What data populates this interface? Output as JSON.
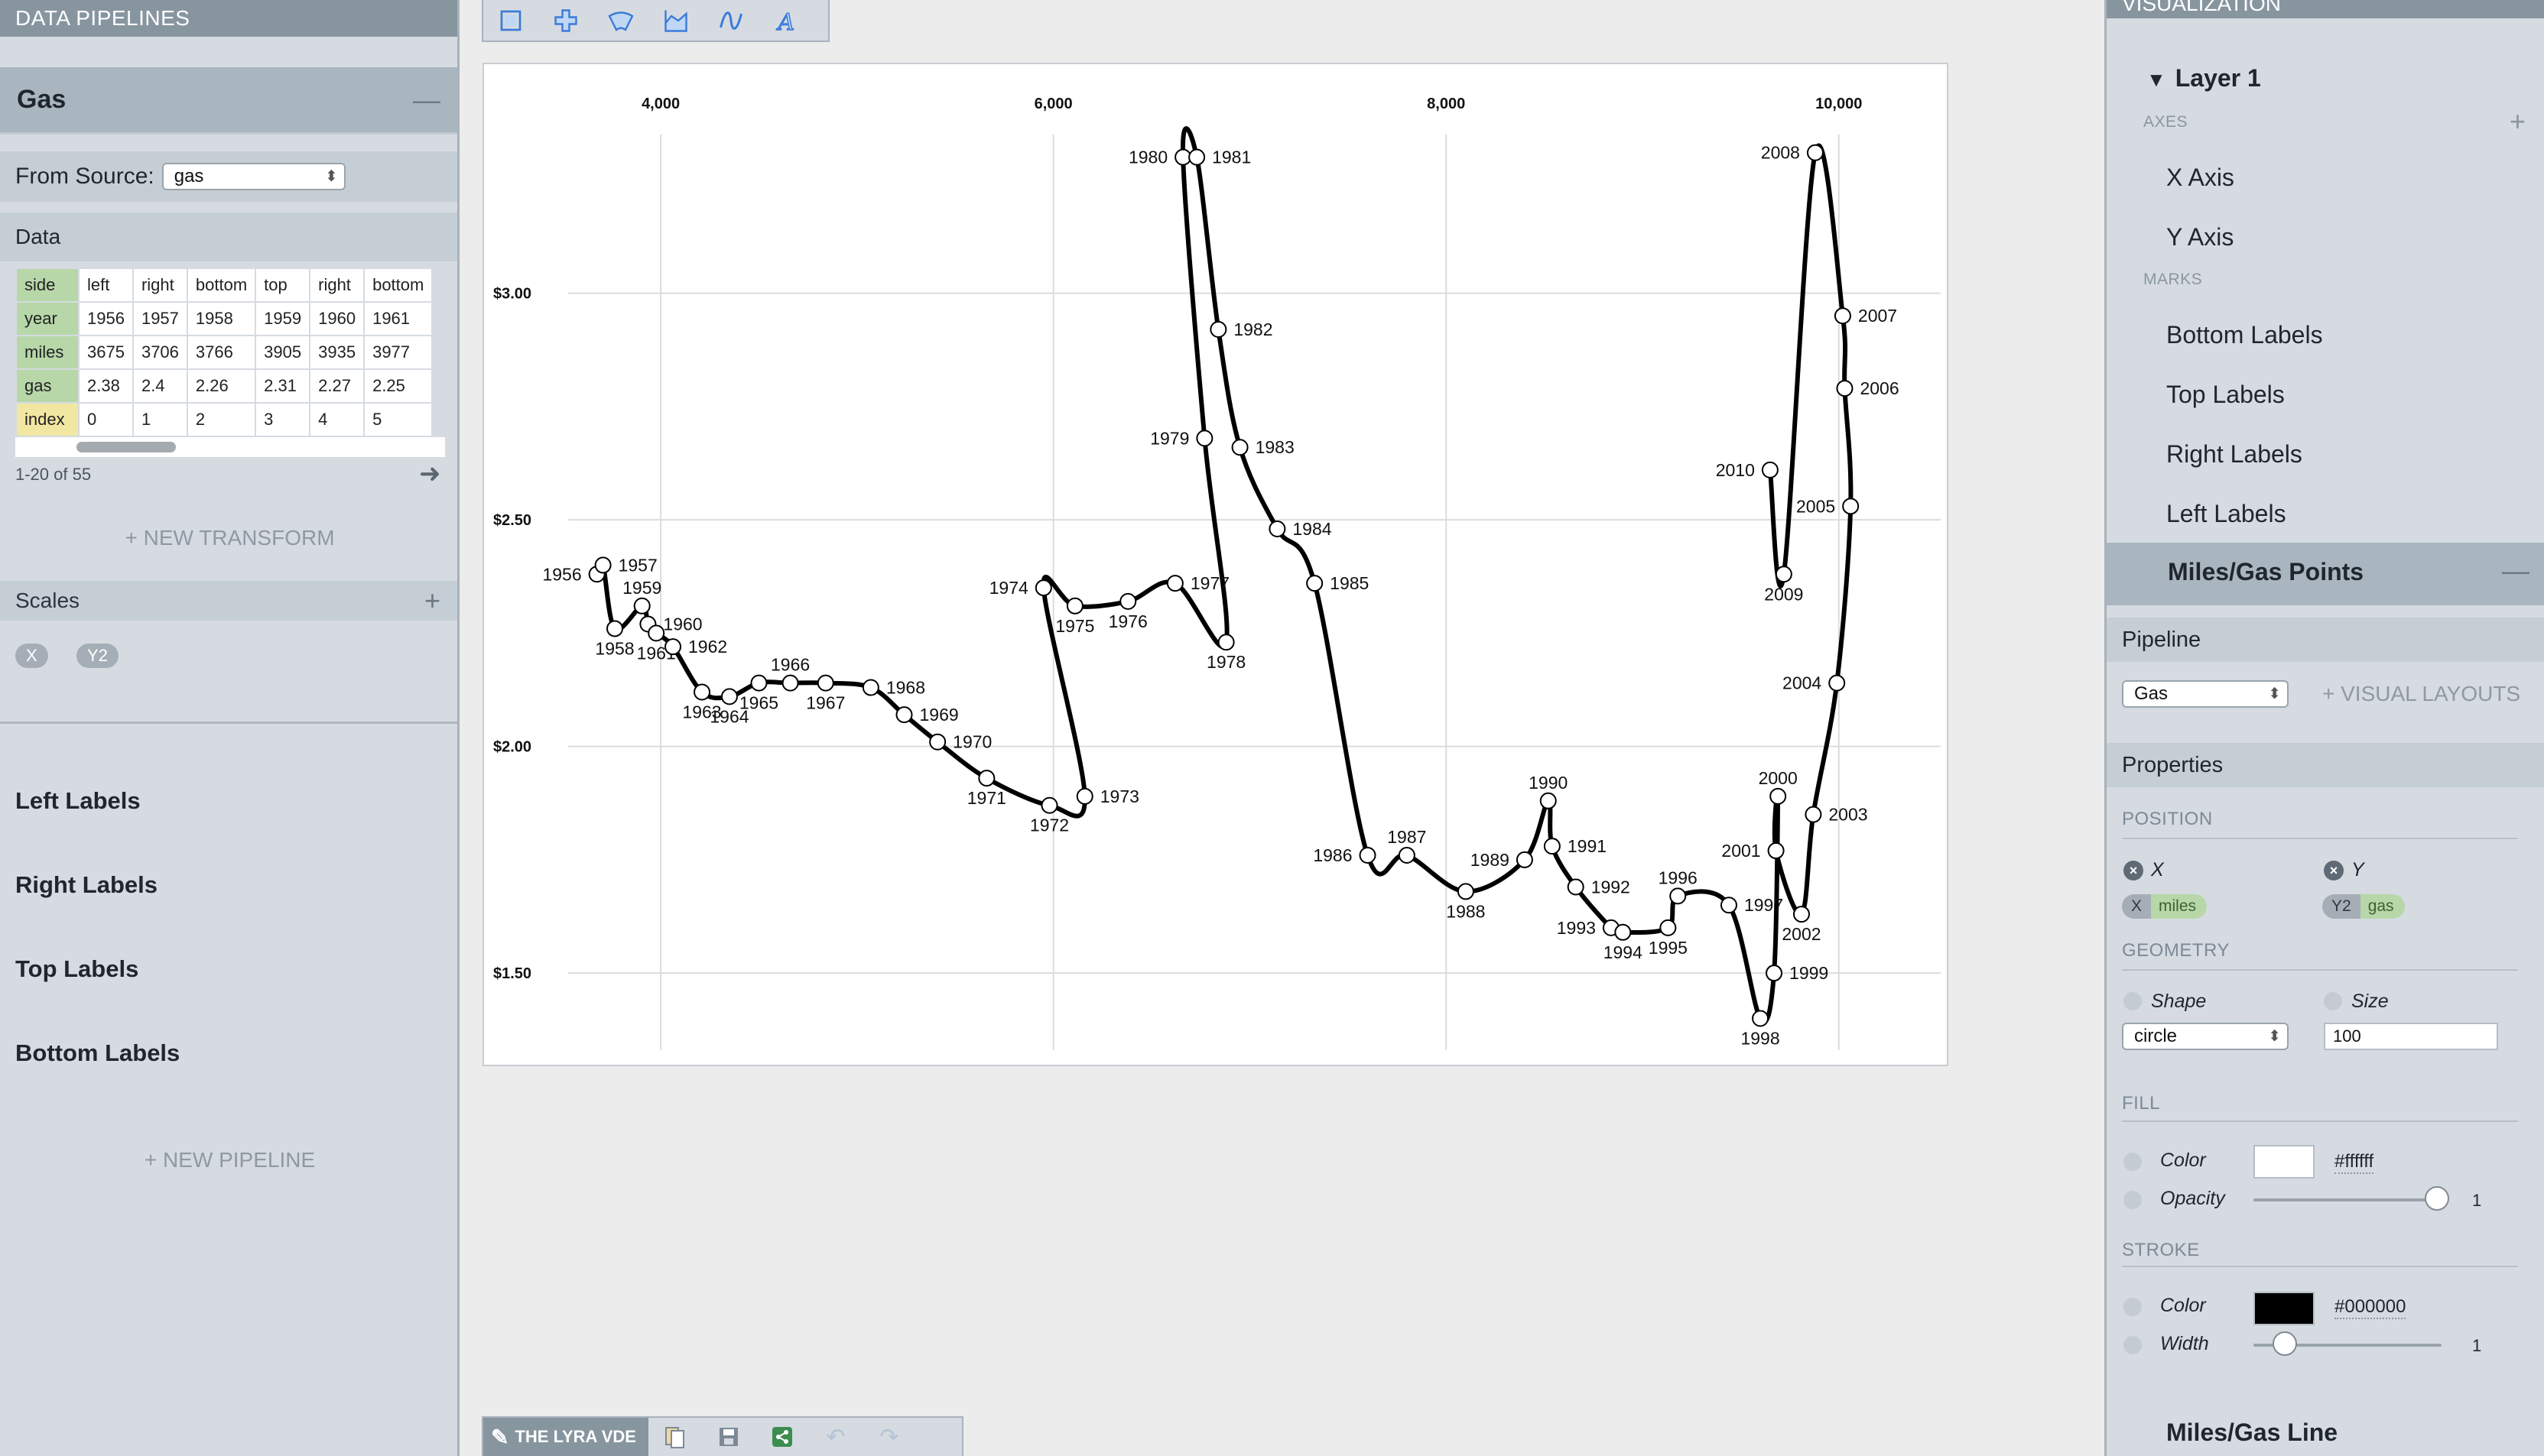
{
  "left_panel": {
    "header": "DATA PIPELINES",
    "pipeline_name": "Gas",
    "source_label": "From Source:",
    "source_value": "gas",
    "data_label": "Data",
    "table": {
      "rows": [
        {
          "field": "side",
          "values": [
            "left",
            "right",
            "bottom",
            "top",
            "right",
            "bottom"
          ]
        },
        {
          "field": "year",
          "values": [
            "1956",
            "1957",
            "1958",
            "1959",
            "1960",
            "1961"
          ]
        },
        {
          "field": "miles",
          "values": [
            "3675",
            "3706",
            "3766",
            "3905",
            "3935",
            "3977"
          ]
        },
        {
          "field": "gas",
          "values": [
            "2.38",
            "2.4",
            "2.26",
            "2.31",
            "2.27",
            "2.25"
          ]
        },
        {
          "field": "index",
          "values": [
            "0",
            "1",
            "2",
            "3",
            "4",
            "5"
          ]
        }
      ]
    },
    "pager_text": "1-20 of 55",
    "new_transform": "+ NEW TRANSFORM",
    "scales_label": "Scales",
    "scales": [
      "X",
      "Y2"
    ],
    "pipeline_marks": [
      "Left Labels",
      "Right Labels",
      "Top Labels",
      "Bottom Labels"
    ],
    "new_pipeline": "+ NEW PIPELINE"
  },
  "toolbar": {
    "tools": [
      "rect-tool-icon",
      "symbol-tool-icon",
      "arc-tool-icon",
      "area-tool-icon",
      "line-tool-icon",
      "text-tool-icon"
    ]
  },
  "bottom_bar": {
    "brand": "THE LYRA VDE",
    "icons": [
      "export-icon",
      "save-icon",
      "share-icon",
      "undo-icon",
      "redo-icon"
    ]
  },
  "right_panel": {
    "header": "VISUALIZATION",
    "layer": "Layer 1",
    "axes_label": "AXES",
    "axes": [
      "X Axis",
      "Y Axis"
    ],
    "marks_label": "MARKS",
    "marks": [
      "Bottom Labels",
      "Top Labels",
      "Right Labels",
      "Left Labels"
    ],
    "active_mark": "Miles/Gas Points",
    "pipeline_section": "Pipeline",
    "pipeline_value": "Gas",
    "visual_layouts": "+ VISUAL LAYOUTS",
    "properties_section": "Properties",
    "position_label": "POSITION",
    "x_label": "X",
    "y_label": "Y",
    "x_scale": "X",
    "x_field": "miles",
    "y_scale": "Y2",
    "y_field": "gas",
    "geometry_label": "GEOMETRY",
    "shape_label": "Shape",
    "shape_value": "circle",
    "size_label": "Size",
    "size_value": "100",
    "fill_label": "FILL",
    "fill_color_label": "Color",
    "fill_color": "#ffffff",
    "fill_opacity_label": "Opacity",
    "fill_opacity": "1",
    "stroke_label": "STROKE",
    "stroke_color_label": "Color",
    "stroke_color": "#000000",
    "stroke_width_label": "Width",
    "stroke_width": "1",
    "next_mark": "Miles/Gas Line"
  },
  "chart_data": {
    "type": "line",
    "xlim": [
      3100,
      10550
    ],
    "ylim": [
      1.33,
      3.35
    ],
    "x_ticks": [
      {
        "v": 4000,
        "label": "4,000"
      },
      {
        "v": 6000,
        "label": "6,000"
      },
      {
        "v": 8000,
        "label": "8,000"
      },
      {
        "v": 10000,
        "label": "10,000"
      }
    ],
    "y_ticks": [
      {
        "v": 1.5,
        "label": "$1.50"
      },
      {
        "v": 2.0,
        "label": "$2.00"
      },
      {
        "v": 2.5,
        "label": "$2.50"
      },
      {
        "v": 3.0,
        "label": "$3.00"
      }
    ],
    "grid": true,
    "points": [
      {
        "year": "1956",
        "miles": 3675,
        "gas": 2.38,
        "side": "left"
      },
      {
        "year": "1957",
        "miles": 3706,
        "gas": 2.4,
        "side": "right"
      },
      {
        "year": "1958",
        "miles": 3766,
        "gas": 2.26,
        "side": "bottom"
      },
      {
        "year": "1959",
        "miles": 3905,
        "gas": 2.31,
        "side": "top"
      },
      {
        "year": "1960",
        "miles": 3935,
        "gas": 2.27,
        "side": "right"
      },
      {
        "year": "1961",
        "miles": 3977,
        "gas": 2.25,
        "side": "bottom"
      },
      {
        "year": "1962",
        "miles": 4062,
        "gas": 2.22,
        "side": "right"
      },
      {
        "year": "1963",
        "miles": 4210,
        "gas": 2.12,
        "side": "bottom"
      },
      {
        "year": "1964",
        "miles": 4350,
        "gas": 2.11,
        "side": "bottom"
      },
      {
        "year": "1965",
        "miles": 4500,
        "gas": 2.14,
        "side": "bottom"
      },
      {
        "year": "1966",
        "miles": 4660,
        "gas": 2.14,
        "side": "top"
      },
      {
        "year": "1967",
        "miles": 4840,
        "gas": 2.14,
        "side": "bottom"
      },
      {
        "year": "1968",
        "miles": 5070,
        "gas": 2.13,
        "side": "right"
      },
      {
        "year": "1969",
        "miles": 5240,
        "gas": 2.07,
        "side": "right"
      },
      {
        "year": "1970",
        "miles": 5410,
        "gas": 2.01,
        "side": "right"
      },
      {
        "year": "1971",
        "miles": 5660,
        "gas": 1.93,
        "side": "bottom"
      },
      {
        "year": "1972",
        "miles": 5980,
        "gas": 1.87,
        "side": "bottom"
      },
      {
        "year": "1973",
        "miles": 6160,
        "gas": 1.89,
        "side": "right"
      },
      {
        "year": "1974",
        "miles": 5950,
        "gas": 2.35,
        "side": "left"
      },
      {
        "year": "1975",
        "miles": 6110,
        "gas": 2.31,
        "side": "bottom"
      },
      {
        "year": "1976",
        "miles": 6380,
        "gas": 2.32,
        "side": "bottom"
      },
      {
        "year": "1977",
        "miles": 6620,
        "gas": 2.36,
        "side": "right"
      },
      {
        "year": "1978",
        "miles": 6880,
        "gas": 2.23,
        "side": "bottom"
      },
      {
        "year": "1979",
        "miles": 6770,
        "gas": 2.68,
        "side": "left"
      },
      {
        "year": "1980",
        "miles": 6660,
        "gas": 3.3,
        "side": "left"
      },
      {
        "year": "1981",
        "miles": 6730,
        "gas": 3.3,
        "side": "right"
      },
      {
        "year": "1982",
        "miles": 6840,
        "gas": 2.92,
        "side": "right"
      },
      {
        "year": "1983",
        "miles": 6950,
        "gas": 2.66,
        "side": "right"
      },
      {
        "year": "1984",
        "miles": 7140,
        "gas": 2.48,
        "side": "right"
      },
      {
        "year": "1985",
        "miles": 7330,
        "gas": 2.36,
        "side": "right"
      },
      {
        "year": "1986",
        "miles": 7600,
        "gas": 1.76,
        "side": "left"
      },
      {
        "year": "1987",
        "miles": 7800,
        "gas": 1.76,
        "side": "top"
      },
      {
        "year": "1988",
        "miles": 8100,
        "gas": 1.68,
        "side": "bottom"
      },
      {
        "year": "1989",
        "miles": 8400,
        "gas": 1.75,
        "side": "left"
      },
      {
        "year": "1990",
        "miles": 8520,
        "gas": 1.88,
        "side": "top"
      },
      {
        "year": "1991",
        "miles": 8540,
        "gas": 1.78,
        "side": "right"
      },
      {
        "year": "1992",
        "miles": 8660,
        "gas": 1.69,
        "side": "right"
      },
      {
        "year": "1993",
        "miles": 8840,
        "gas": 1.6,
        "side": "left"
      },
      {
        "year": "1994",
        "miles": 8900,
        "gas": 1.59,
        "side": "bottom"
      },
      {
        "year": "1995",
        "miles": 9130,
        "gas": 1.6,
        "side": "bottom"
      },
      {
        "year": "1996",
        "miles": 9180,
        "gas": 1.67,
        "side": "top"
      },
      {
        "year": "1997",
        "miles": 9440,
        "gas": 1.65,
        "side": "right"
      },
      {
        "year": "1998",
        "miles": 9600,
        "gas": 1.4,
        "side": "bottom"
      },
      {
        "year": "1999",
        "miles": 9670,
        "gas": 1.5,
        "side": "right"
      },
      {
        "year": "2000",
        "miles": 9690,
        "gas": 1.89,
        "side": "top"
      },
      {
        "year": "2001",
        "miles": 9680,
        "gas": 1.77,
        "side": "left"
      },
      {
        "year": "2002",
        "miles": 9810,
        "gas": 1.63,
        "side": "bottom"
      },
      {
        "year": "2003",
        "miles": 9870,
        "gas": 1.85,
        "side": "right"
      },
      {
        "year": "2004",
        "miles": 9990,
        "gas": 2.14,
        "side": "left"
      },
      {
        "year": "2005",
        "miles": 10060,
        "gas": 2.53,
        "side": "left"
      },
      {
        "year": "2006",
        "miles": 10030,
        "gas": 2.79,
        "side": "right"
      },
      {
        "year": "2007",
        "miles": 10020,
        "gas": 2.95,
        "side": "right"
      },
      {
        "year": "2008",
        "miles": 9880,
        "gas": 3.31,
        "side": "left"
      },
      {
        "year": "2009",
        "miles": 9720,
        "gas": 2.38,
        "side": "bottom"
      },
      {
        "year": "2010",
        "miles": 9650,
        "gas": 2.61,
        "side": "left"
      }
    ]
  }
}
